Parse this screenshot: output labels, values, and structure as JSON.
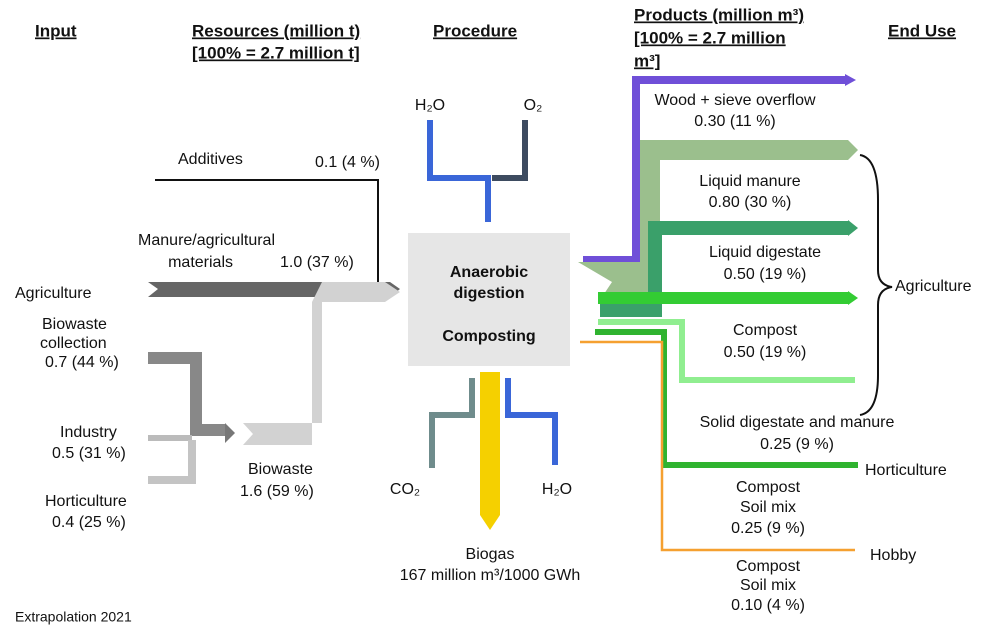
{
  "headers": {
    "input": "Input",
    "resources_lines": [
      "Resources (million t)",
      "[100% = 2.7 million t]"
    ],
    "procedure": "Procedure",
    "products_lines": [
      "Products (million m³)",
      "[100% = 2.7 million",
      "m³]"
    ],
    "end_use": "End Use"
  },
  "inputs": {
    "additives": {
      "label": "Additives",
      "value": "0.1 (4 %)"
    },
    "manure": {
      "label_lines": [
        "Manure/agricultural",
        "materials"
      ],
      "value": "1.0 (37 %)"
    },
    "agriculture": "Agriculture",
    "biowaste_collection": {
      "label_lines": [
        "Biowaste",
        "collection"
      ],
      "value": "0.7 (44 %)"
    },
    "industry": {
      "label": "Industry",
      "value": "0.5 (31 %)"
    },
    "horticulture": {
      "label": "Horticulture",
      "value": "0.4 (25 %)"
    },
    "biowaste": {
      "label": "Biowaste",
      "value": "1.6 (59 %)"
    }
  },
  "procedure": {
    "inputs": [
      "H₂O",
      "O₂"
    ],
    "box_lines": [
      "Anaerobic",
      "digestion",
      "Composting"
    ],
    "outputs": [
      "CO₂",
      "H₂O"
    ],
    "biogas": {
      "label": "Biogas",
      "value": "167 million m³/1000 GWh"
    }
  },
  "products": [
    {
      "label_lines": [
        "Wood + sieve overflow"
      ],
      "value": "0.30 (11 %)"
    },
    {
      "label_lines": [
        "Liquid manure"
      ],
      "value": "0.80 (30 %)"
    },
    {
      "label_lines": [
        "Liquid digestate"
      ],
      "value": "0.50 (19 %)"
    },
    {
      "label_lines": [
        "Compost"
      ],
      "value": "0.50 (19 %)"
    },
    {
      "label_lines": [
        "Solid digestate and manure"
      ],
      "value": "0.25 (9 %)"
    },
    {
      "label_lines": [
        "Compost",
        "Soil mix"
      ],
      "value": "0.25 (9 %)"
    },
    {
      "label_lines": [
        "Compost",
        "Soil mix"
      ],
      "value": "0.10 (4 %)"
    }
  ],
  "end_uses": [
    "Agriculture",
    "Horticulture",
    "Hobby"
  ],
  "footnote": "Extrapolation 2021"
}
